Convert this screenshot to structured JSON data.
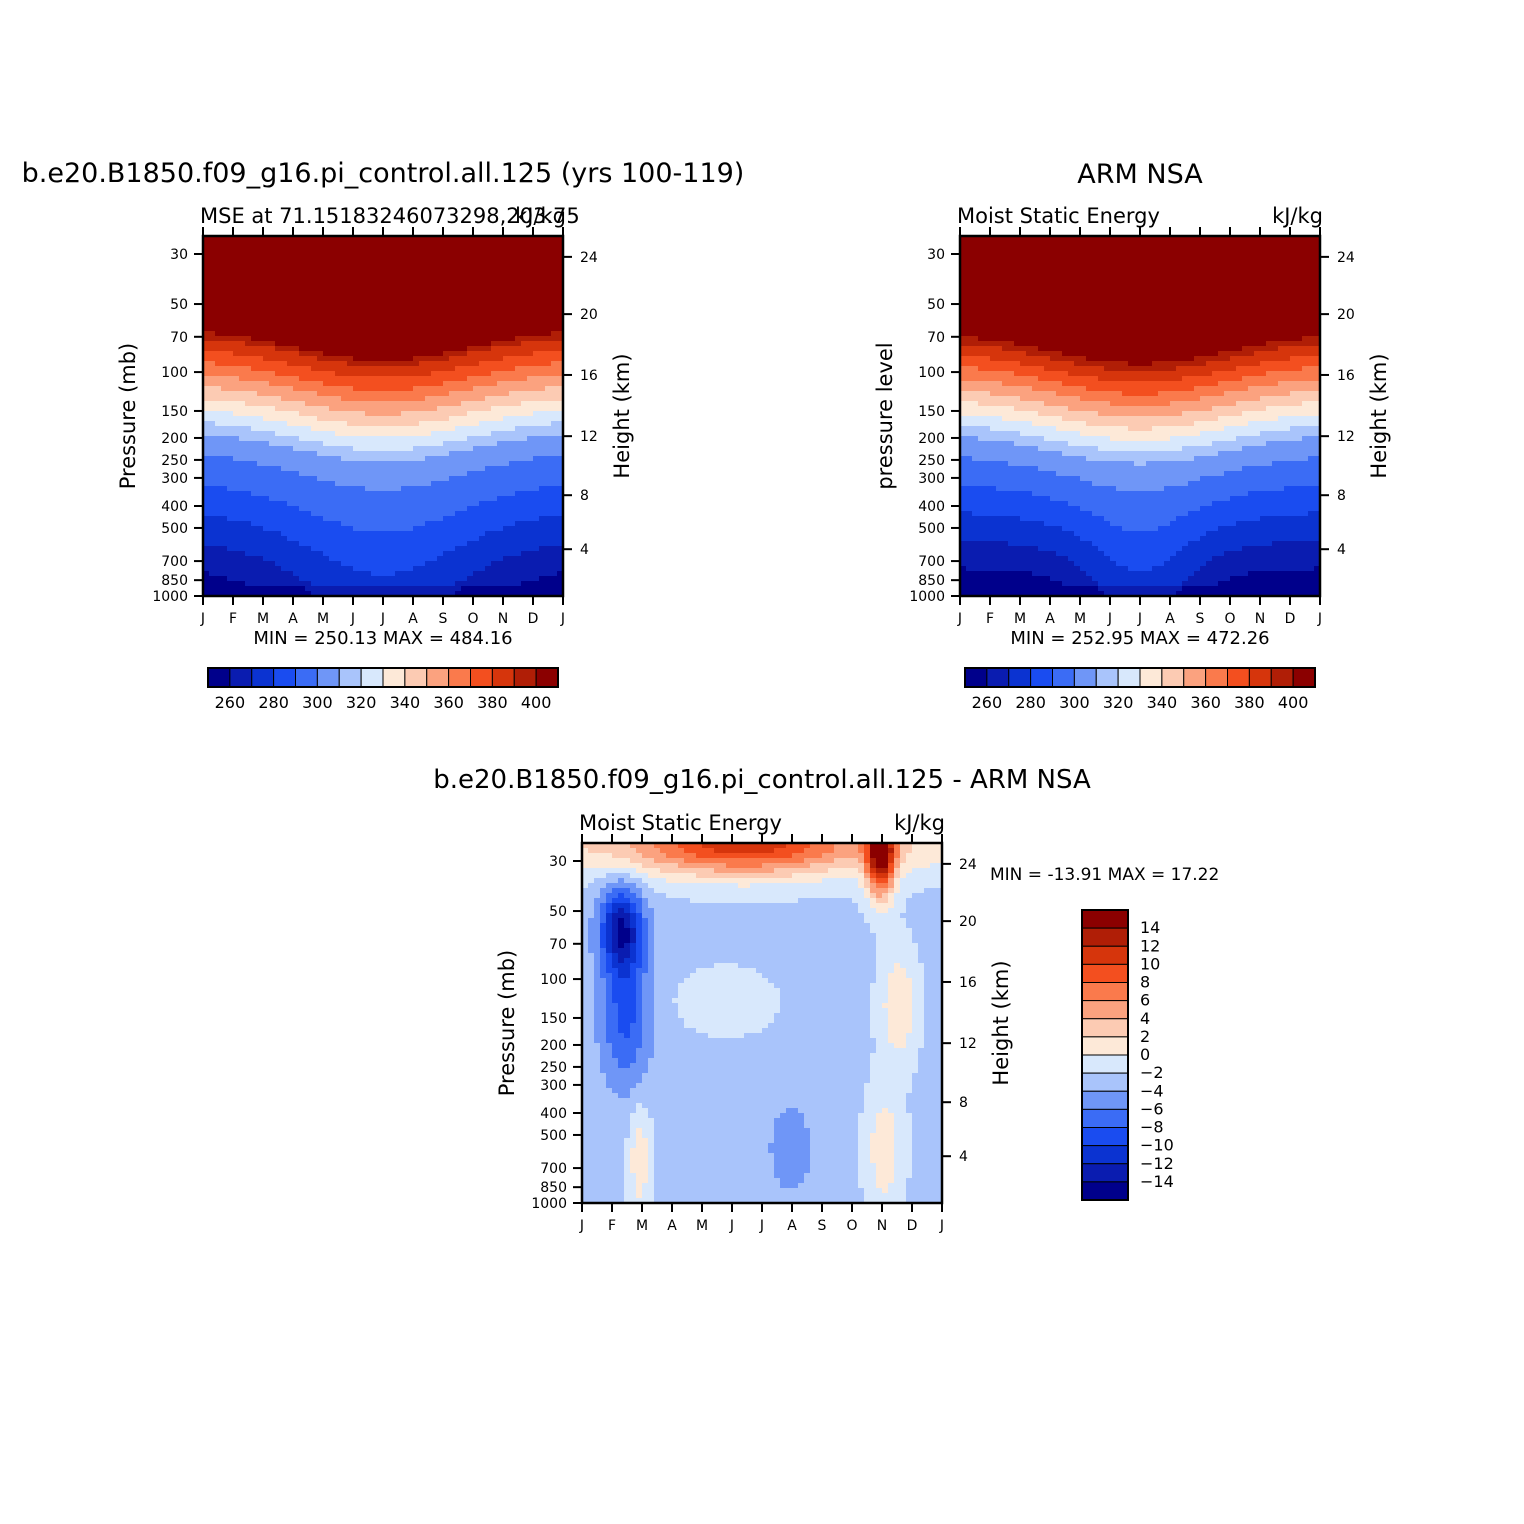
{
  "chart_data": [
    {
      "type": "heatmap",
      "title": "b.e20.B1850.f09_g16.pi_control.all.125 (yrs 100-119)",
      "subtitle_left": "MSE at 71.15183246073298,203.75",
      "subtitle_right": "kJ/kg",
      "ylabel_left": "Pressure (mb)",
      "ylabel_right": "Height (km)",
      "x_categories": [
        "J",
        "F",
        "M",
        "A",
        "M",
        "J",
        "J",
        "A",
        "S",
        "O",
        "N",
        "D",
        "J"
      ],
      "pressure_ticks": [
        30,
        50,
        70,
        100,
        150,
        200,
        250,
        300,
        400,
        500,
        700,
        850,
        1000
      ],
      "height_ticks": [
        24,
        20,
        16,
        12,
        8,
        4
      ],
      "stats": "MIN = 250.13 MAX = 484.16",
      "colorbar_labels": [
        260,
        280,
        300,
        320,
        340,
        360,
        380,
        400
      ],
      "levels": [
        250,
        260,
        270,
        280,
        290,
        300,
        310,
        320,
        330,
        340,
        350,
        360,
        370,
        380,
        390,
        400
      ],
      "field": "mse_model"
    },
    {
      "type": "heatmap",
      "title": "ARM NSA",
      "subtitle_left": "Moist Static Energy",
      "subtitle_right": "kJ/kg",
      "ylabel_left": "pressure level",
      "ylabel_right": "Height (km)",
      "x_categories": [
        "J",
        "F",
        "M",
        "A",
        "M",
        "J",
        "J",
        "A",
        "S",
        "O",
        "N",
        "D",
        "J"
      ],
      "pressure_ticks": [
        30,
        50,
        70,
        100,
        150,
        200,
        250,
        300,
        400,
        500,
        700,
        850,
        1000
      ],
      "height_ticks": [
        24,
        20,
        16,
        12,
        8,
        4
      ],
      "stats": "MIN = 252.95 MAX = 472.26",
      "colorbar_labels": [
        260,
        280,
        300,
        320,
        340,
        360,
        380,
        400
      ],
      "levels": [
        250,
        260,
        270,
        280,
        290,
        300,
        310,
        320,
        330,
        340,
        350,
        360,
        370,
        380,
        390,
        400
      ],
      "field": "mse_obs"
    },
    {
      "type": "heatmap",
      "title": "b.e20.B1850.f09_g16.pi_control.all.125 - ARM NSA",
      "subtitle_left": "Moist Static Energy",
      "subtitle_right": "kJ/kg",
      "ylabel_left": "Pressure (mb)",
      "ylabel_right": "Height (km)",
      "x_categories": [
        "J",
        "F",
        "M",
        "A",
        "M",
        "J",
        "J",
        "A",
        "S",
        "O",
        "N",
        "D",
        "J"
      ],
      "pressure_ticks": [
        30,
        50,
        70,
        100,
        150,
        200,
        250,
        300,
        400,
        500,
        700,
        850,
        1000
      ],
      "height_ticks": [
        24,
        20,
        16,
        12,
        8,
        4
      ],
      "stats": "MIN = -13.91 MAX =   17.22",
      "colorbar_labels": [
        14,
        12,
        10,
        8,
        6,
        4,
        2,
        0,
        -2,
        -4,
        -6,
        -8,
        -10,
        -12,
        -14
      ],
      "levels": [
        -16,
        -14,
        -12,
        -10,
        -8,
        -6,
        -4,
        -2,
        0,
        2,
        4,
        6,
        8,
        10,
        12,
        14,
        16
      ],
      "field": "mse_diff"
    }
  ],
  "colors": {
    "mse_palette": [
      "#00008b",
      "#0a1cb0",
      "#0b33d1",
      "#1a4cf0",
      "#3b6cf5",
      "#6f96f7",
      "#a9c4fb",
      "#d8e8fc",
      "#fde9d8",
      "#fccbb3",
      "#fba27f",
      "#fa7a4c",
      "#f34f1f",
      "#d6350c",
      "#b01e06",
      "#8b0000"
    ],
    "diff_palette": [
      "#00008b",
      "#0a1cb0",
      "#0b33d1",
      "#1a4cf0",
      "#3b6cf5",
      "#6f96f7",
      "#a9c4fb",
      "#d8e8fc",
      "#fde9d8",
      "#fccbb3",
      "#fba27f",
      "#fa7a4c",
      "#f34f1f",
      "#d6350c",
      "#b01e06",
      "#8b0000"
    ]
  }
}
